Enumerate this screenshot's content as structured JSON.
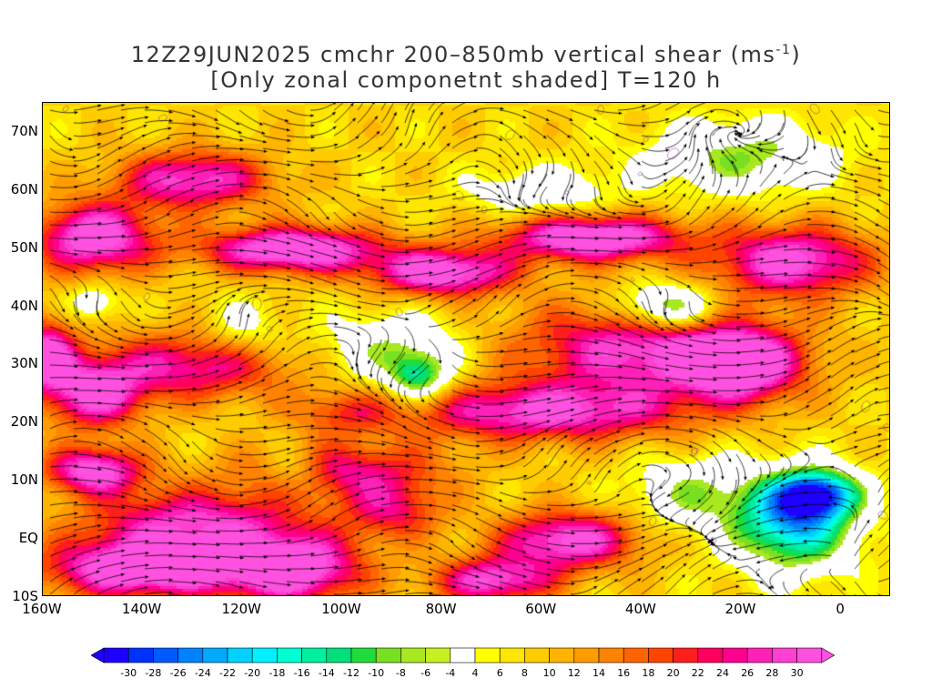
{
  "title": {
    "line1": "12Z29JUN2025 cmchr 200–850mb vertical shear (ms",
    "sup": "-1",
    "line1_end": ")",
    "line2": "[Only zonal componetnt shaded] T=120 h"
  },
  "map": {
    "lat_labels": [
      "70N",
      "60N",
      "50N",
      "40N",
      "30N",
      "20N",
      "10N",
      "EQ",
      "10S"
    ],
    "lon_labels": [
      "160W",
      "140W",
      "120W",
      "100W",
      "80W",
      "60W",
      "40W",
      "20W",
      "0"
    ],
    "lat_range": [
      -10,
      75
    ],
    "lon_range": [
      -160,
      10
    ]
  },
  "colorbar": {
    "labels": [
      "-30",
      "-28",
      "-26",
      "-24",
      "-22",
      "-20",
      "-18",
      "-16",
      "-14",
      "-12",
      "-10",
      "-8",
      "-6",
      "-4",
      "4",
      "6",
      "8",
      "10",
      "12",
      "14",
      "16",
      "18",
      "20",
      "22",
      "24",
      "26",
      "28",
      "30"
    ],
    "colors": [
      "#1e00ff",
      "#0032ff",
      "#005aff",
      "#0082ff",
      "#00aaff",
      "#00d2ff",
      "#00f0ff",
      "#00ffd0",
      "#00f0a0",
      "#00e07a",
      "#20dc3a",
      "#78e020",
      "#a8e820",
      "#c8f020",
      "#ffffff",
      "#ffff00",
      "#ffe600",
      "#ffcc00",
      "#ffb400",
      "#ff9c00",
      "#ff8200",
      "#ff6400",
      "#ff4400",
      "#ff1e1e",
      "#ff0060",
      "#ff0090",
      "#ff20b8",
      "#ff40d0",
      "#ff50e0"
    ]
  }
}
